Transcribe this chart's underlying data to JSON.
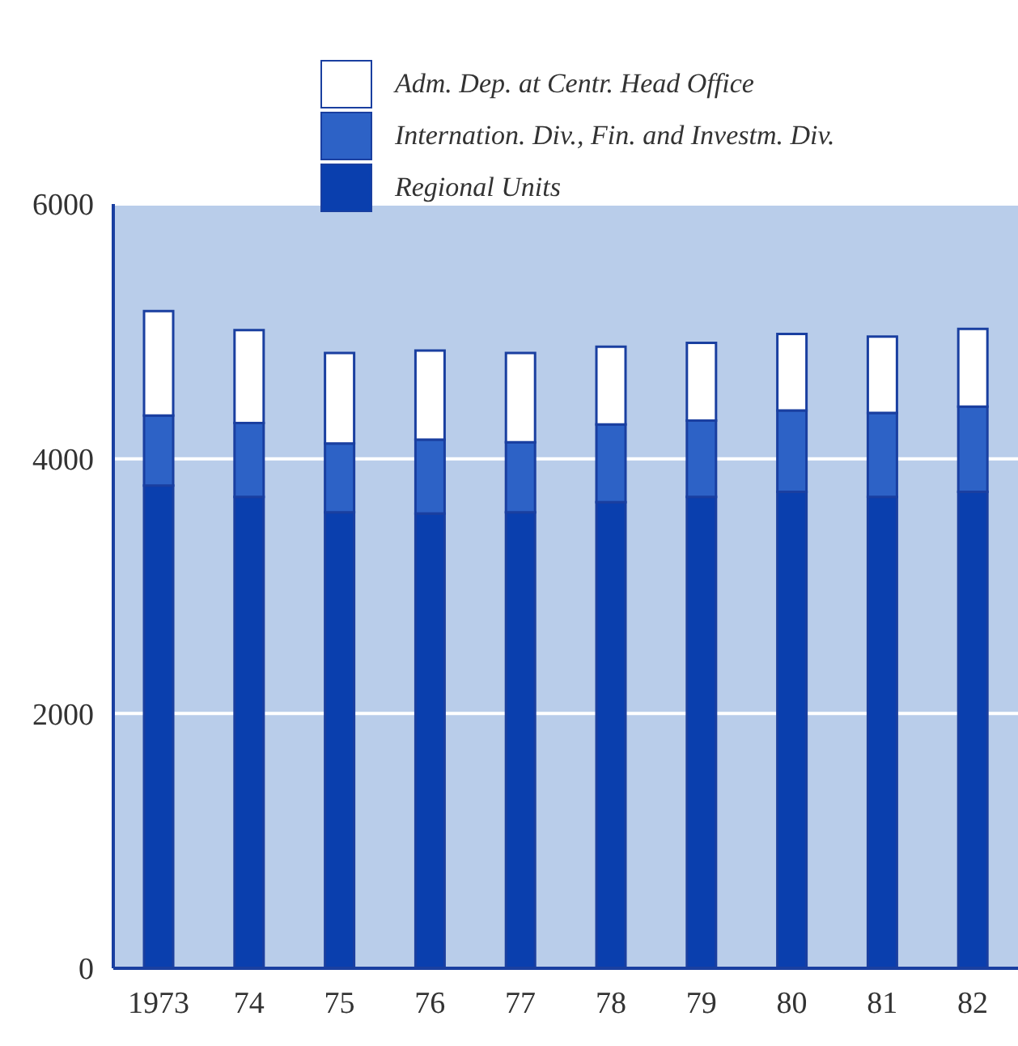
{
  "chart_data": {
    "type": "bar",
    "stacked": true,
    "categories": [
      "1973",
      "74",
      "75",
      "76",
      "77",
      "78",
      "79",
      "80",
      "81",
      "82"
    ],
    "series": [
      {
        "name": "Regional Units",
        "color": "#0a3fae",
        "values": [
          3790,
          3700,
          3580,
          3570,
          3580,
          3660,
          3700,
          3740,
          3700,
          3740
        ]
      },
      {
        "name": "Internation. Div., Fin. and Investm. Div.",
        "color": "#2d62c6",
        "values": [
          550,
          580,
          540,
          580,
          550,
          610,
          600,
          640,
          660,
          670
        ]
      },
      {
        "name": "Adm. Dep. at Centr. Head Office",
        "color": "#ffffff",
        "values": [
          820,
          730,
          710,
          700,
          700,
          610,
          610,
          600,
          600,
          610
        ]
      }
    ],
    "ylim": [
      0,
      6000
    ],
    "yticks": [
      0,
      2000,
      4000,
      6000
    ],
    "grid": "y",
    "legend": "top"
  }
}
